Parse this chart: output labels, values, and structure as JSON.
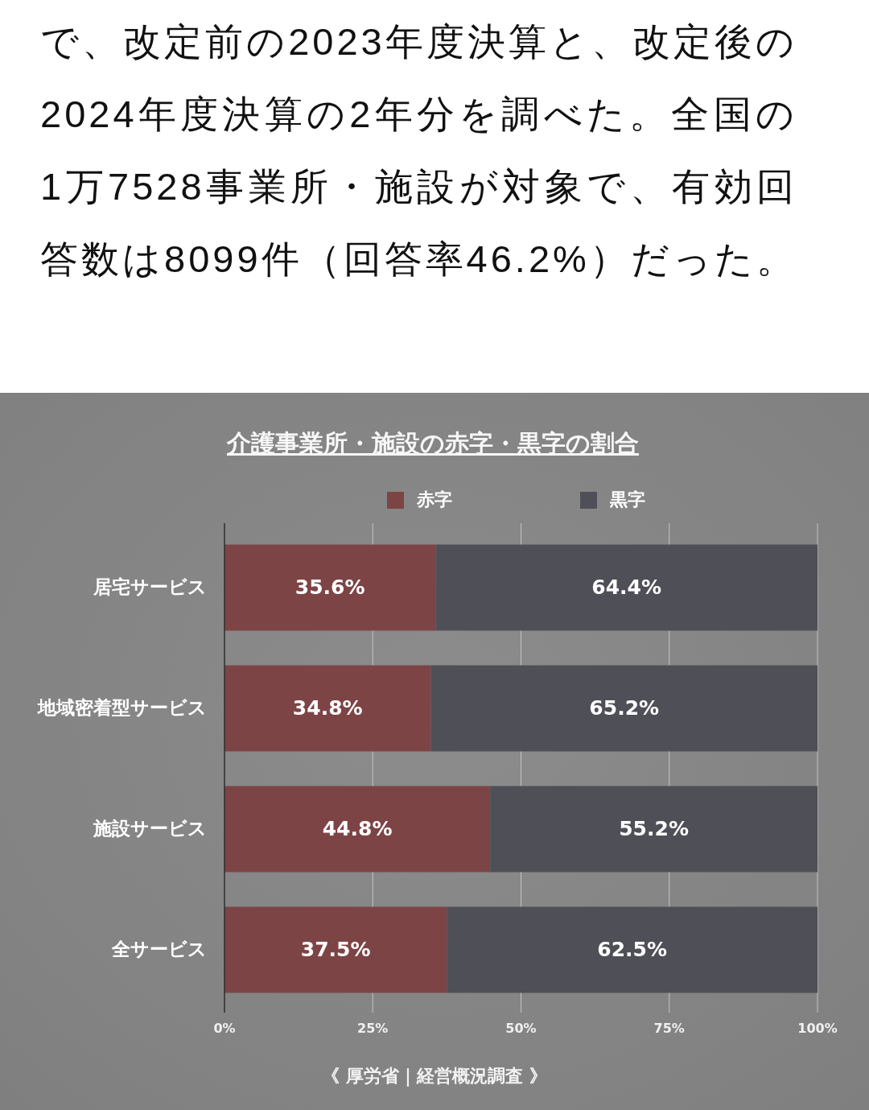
{
  "chart_data": {
    "type": "bar",
    "orientation": "horizontal",
    "stacked": true,
    "title": "介護事業所・施設の赤字・黒字の割合",
    "categories": [
      "居宅サービス",
      "地域密着型サービス",
      "施設サービス",
      "全サービス"
    ],
    "series": [
      {
        "name": "赤字",
        "color": "#7d4446",
        "values": [
          35.6,
          34.8,
          44.8,
          37.5
        ],
        "value_labels": [
          "35.6%",
          "34.8%",
          "44.8%",
          "37.5%"
        ]
      },
      {
        "name": "黒字",
        "color": "#4f4f57",
        "values": [
          64.4,
          65.2,
          55.2,
          62.5
        ],
        "value_labels": [
          "64.4%",
          "65.2%",
          "55.2%",
          "62.5%"
        ]
      }
    ],
    "xlim": [
      0,
      100
    ],
    "xticks": [
      {
        "value": 0,
        "label": "0%"
      },
      {
        "value": 25,
        "label": "25%"
      },
      {
        "value": 50,
        "label": "50%"
      },
      {
        "value": 75,
        "label": "75%"
      },
      {
        "value": 100,
        "label": "100%"
      }
    ],
    "grid": "x",
    "legend": "top",
    "annotations": [
      "で、改定前の2023年度決算と、改定後の2024年度決算の2年分を調べた。全国の1万7528事業所・施設が対象で、有効回答数は8099件（回答率46.2%）だった。",
      "《 厚労省｜経営概況調査 》"
    ]
  }
}
